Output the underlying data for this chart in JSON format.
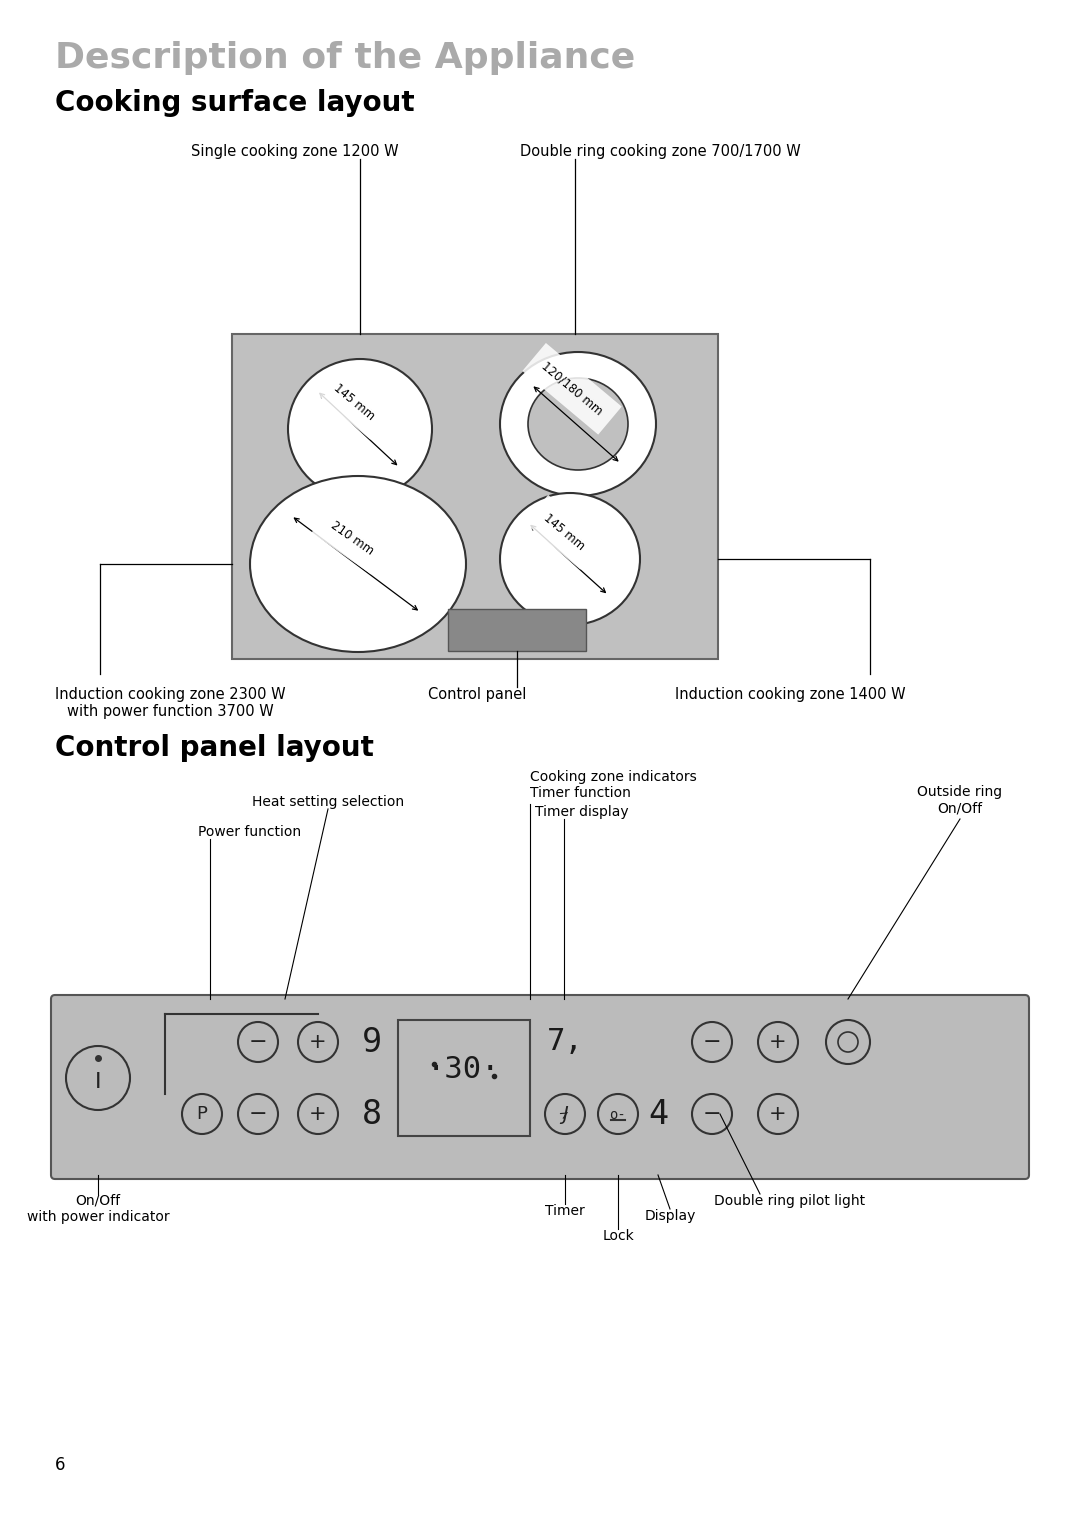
{
  "title": "Description of the Appliance",
  "section1": "Cooking surface layout",
  "section2": "Control panel layout",
  "title_color": "#aaaaaa",
  "section_color": "#000000",
  "bg_color": "#ffffff",
  "cooktop_bg": "#c0c0c0",
  "cooktop_border": "#666666",
  "burner_fill": "#ffffff",
  "burner_stroke": "#333333",
  "control_strip_fill": "#888888",
  "panel_bg": "#bbbbbb",
  "panel_stroke": "#555555",
  "page_number": "6",
  "title_fontsize": 26,
  "section_fontsize": 20,
  "label_fontsize": 10.5,
  "dim_fontsize": 8.5,
  "panel_label_fontsize": 10
}
